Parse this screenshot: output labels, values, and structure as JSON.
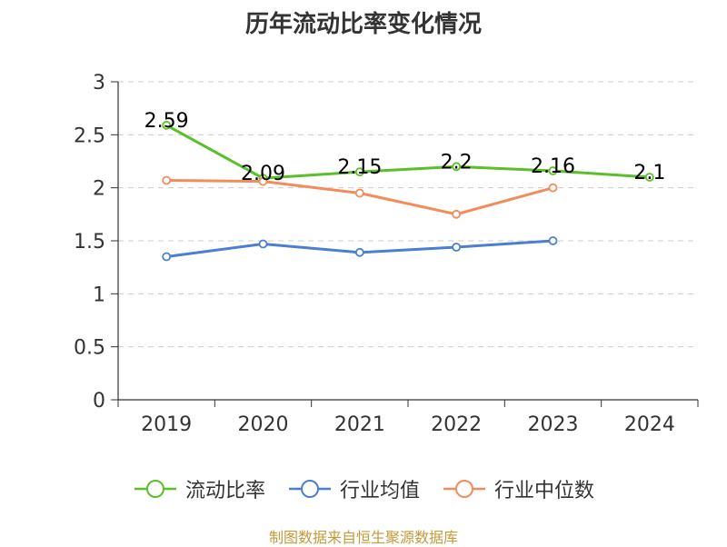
{
  "chart_data": {
    "type": "line",
    "title": "历年流动比率变化情况",
    "categories": [
      "2019",
      "2020",
      "2021",
      "2022",
      "2023",
      "2024"
    ],
    "ylim": [
      0,
      3
    ],
    "yticks": [
      "0",
      "0.5",
      "1",
      "1.5",
      "2",
      "2.5",
      "3"
    ],
    "grid": true,
    "legend_position": "bottom",
    "series": [
      {
        "name": "流动比率",
        "color": "#5bbf2a",
        "values": [
          2.59,
          2.09,
          2.15,
          2.2,
          2.16,
          2.1
        ],
        "labels": [
          "2.59",
          "2.09",
          "2.15",
          "2.2",
          "2.16",
          "2.1"
        ]
      },
      {
        "name": "行业均值",
        "color": "#4a7fd4",
        "values": [
          1.35,
          1.47,
          1.39,
          1.44,
          1.5,
          null
        ]
      },
      {
        "name": "行业中位数",
        "color": "#f28c5a",
        "values": [
          2.07,
          2.06,
          1.95,
          1.75,
          2.0,
          null
        ]
      }
    ]
  },
  "source": "制图数据来自恒生聚源数据库"
}
